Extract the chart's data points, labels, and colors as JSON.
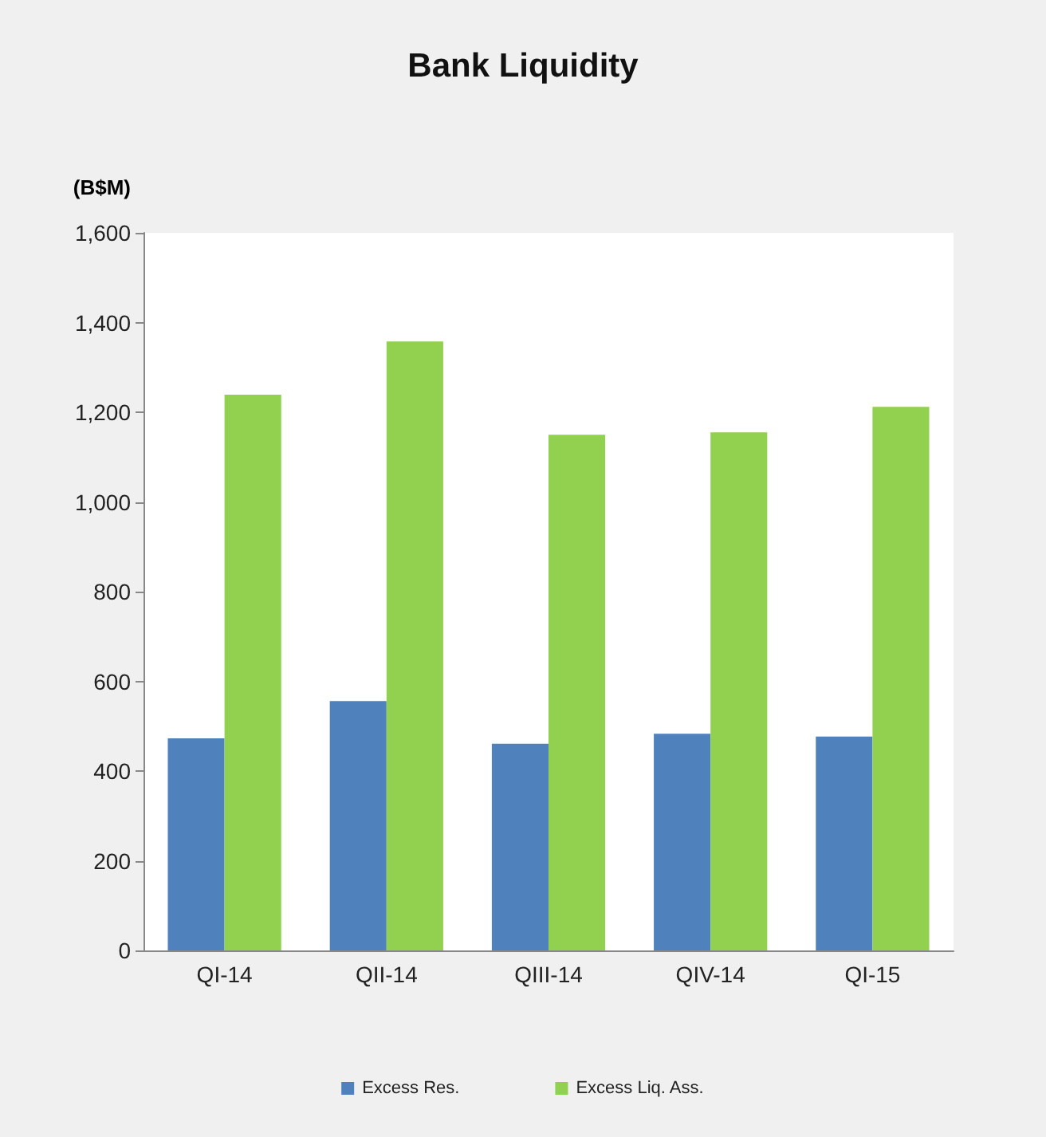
{
  "chart_data": {
    "type": "bar",
    "title": "Bank Liquidity",
    "ylabel": "(B$M)",
    "categories": [
      "QI-14",
      "QII-14",
      "QIII-14",
      "QIV-14",
      "QI-15"
    ],
    "series": [
      {
        "name": "Excess Res.",
        "color": "#4f81bd",
        "values": [
          473,
          556,
          461,
          483,
          477
        ]
      },
      {
        "name": "Excess Liq. Ass.",
        "color": "#92d050",
        "values": [
          1239,
          1358,
          1150,
          1155,
          1212
        ]
      }
    ],
    "ylim": [
      0,
      1600
    ],
    "yticks": [
      {
        "value": 0,
        "label": "0"
      },
      {
        "value": 200,
        "label": "200"
      },
      {
        "value": 400,
        "label": "400"
      },
      {
        "value": 600,
        "label": "600"
      },
      {
        "value": 800,
        "label": "800"
      },
      {
        "value": 1000,
        "label": "1,000"
      },
      {
        "value": 1200,
        "label": "1,200"
      },
      {
        "value": 1400,
        "label": "1,400"
      },
      {
        "value": 1600,
        "label": "1,600"
      }
    ],
    "grid": false,
    "legend": "bottom"
  }
}
